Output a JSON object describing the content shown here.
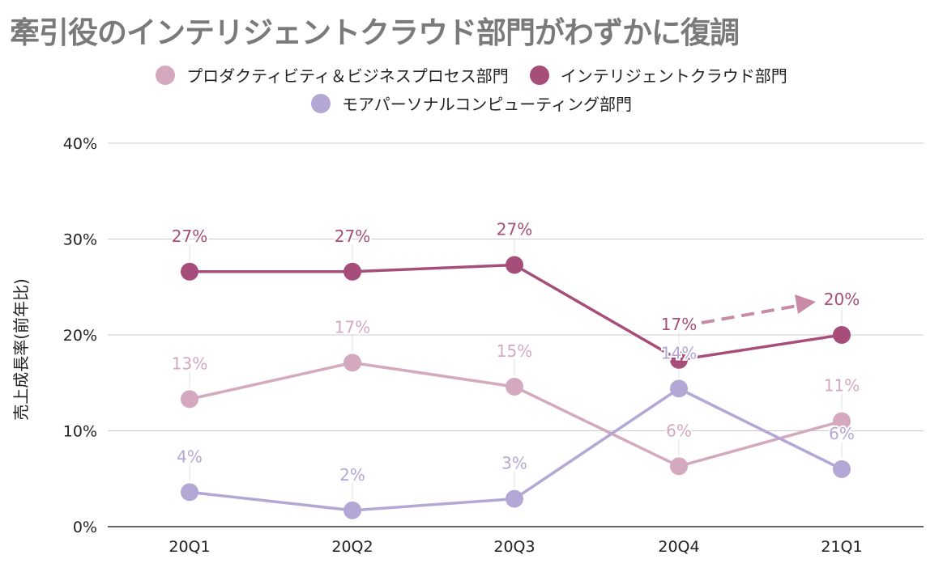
{
  "title": "牽引役のインテリジェントクラウド部門がわずかに復調",
  "chart_data": {
    "type": "line",
    "title": "牽引役のインテリジェントクラウド部門がわずかに復調",
    "xlabel": "",
    "ylabel": "売上成長率(前年比)",
    "categories": [
      "20Q1",
      "20Q2",
      "20Q3",
      "20Q4",
      "21Q1"
    ],
    "ylim": [
      0,
      40
    ],
    "yticks": [
      "0%",
      "10%",
      "20%",
      "30%",
      "40%"
    ],
    "grid": true,
    "legend_position": "top",
    "series": [
      {
        "name": "プロダクティビティ＆ビジネスプロセス部門",
        "color": "#d4a8bf",
        "values": [
          13.3,
          17.1,
          14.6,
          6.3,
          11.0
        ],
        "labels": [
          "13%",
          "17%",
          "15%",
          "6%",
          "11%"
        ]
      },
      {
        "name": "インテリジェントクラウド部門",
        "color": "#a64d79",
        "values": [
          26.6,
          26.6,
          27.3,
          17.4,
          20.0
        ],
        "labels": [
          "27%",
          "27%",
          "27%",
          "17%",
          "20%"
        ]
      },
      {
        "name": "モアパーソナルコンピューティング部門",
        "color": "#b4a7d6",
        "values": [
          3.6,
          1.7,
          2.9,
          14.4,
          6.0
        ],
        "labels": [
          "4%",
          "2%",
          "3%",
          "14%",
          "6%"
        ]
      }
    ],
    "annotation": "dashed-arrow 20Q4 → 21Q1 (intelligent cloud trend)"
  }
}
